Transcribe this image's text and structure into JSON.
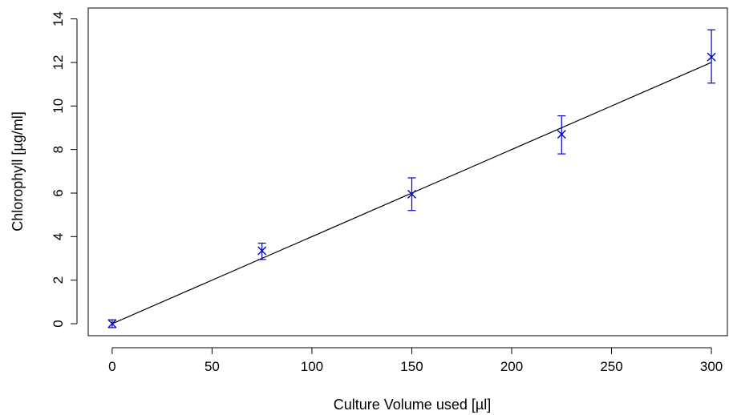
{
  "chart_data": {
    "type": "scatter",
    "title": "",
    "xlabel": "Culture Volume used [µl]",
    "ylabel": "Chlorophyll [µg/ml]",
    "xlim": [
      -12,
      308
    ],
    "ylim": [
      -0.55,
      14.5
    ],
    "x_ticks": [
      0,
      50,
      100,
      150,
      200,
      250,
      300
    ],
    "y_ticks": [
      0,
      2,
      4,
      6,
      8,
      10,
      12,
      14
    ],
    "grid": false,
    "legend": "none",
    "series": [
      {
        "marker": "x",
        "color": "#0000cc",
        "points": [
          {
            "x": 0,
            "y": 0.0,
            "err_low": -0.18,
            "err_high": 0.18
          },
          {
            "x": 75,
            "y": 3.35,
            "err_low": 2.95,
            "err_high": 3.7
          },
          {
            "x": 150,
            "y": 5.95,
            "err_low": 5.2,
            "err_high": 6.7
          },
          {
            "x": 225,
            "y": 8.7,
            "err_low": 7.8,
            "err_high": 9.55
          },
          {
            "x": 300,
            "y": 12.25,
            "err_low": 11.05,
            "err_high": 13.5
          }
        ]
      }
    ],
    "fit_line": {
      "x": [
        0,
        300
      ],
      "y": [
        0.0,
        12.0
      ],
      "color": "#000000"
    }
  }
}
